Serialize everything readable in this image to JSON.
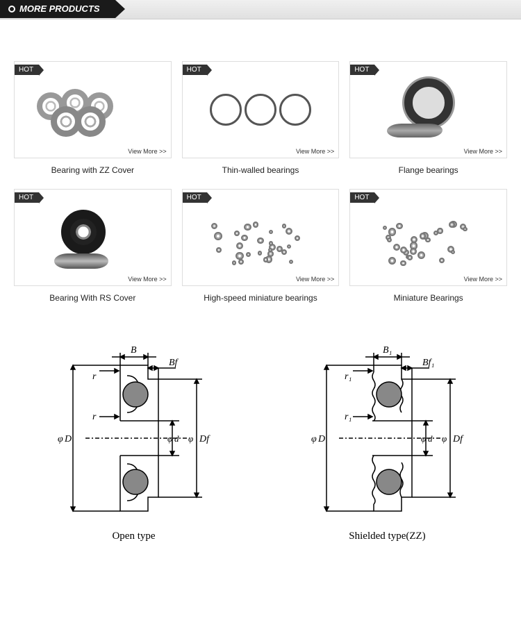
{
  "header": {
    "title": "MORE PRODUCTS"
  },
  "hot_label": "HOT",
  "view_more_label": "View More >>",
  "products": [
    {
      "title": "Bearing with ZZ Cover"
    },
    {
      "title": "Thin-walled bearings"
    },
    {
      "title": "Flange bearings"
    },
    {
      "title": "Bearing With RS Cover"
    },
    {
      "title": "High-speed miniature bearings"
    },
    {
      "title": "Miniature Bearings"
    }
  ],
  "diagrams": [
    {
      "caption": "Open type",
      "labels": {
        "B": "B",
        "Bf": "Bf",
        "r_top": "r",
        "r_bot": "r",
        "D": "D",
        "d": "d",
        "Df": "Df"
      }
    },
    {
      "caption": "Shielded type(ZZ)",
      "labels": {
        "B": "B₁",
        "Bf": "Bf₁",
        "r_top": "r₁",
        "r_bot": "r₁",
        "D": "D",
        "d": "d",
        "Df": "Df"
      }
    }
  ],
  "style": {
    "header_bg": "#1a1a1a",
    "header_text": "#ffffff",
    "hot_bg": "#333333",
    "card_border": "#dddddd",
    "title_color": "#222222",
    "diagram_stroke": "#000000",
    "ball_fill": "#888888"
  }
}
